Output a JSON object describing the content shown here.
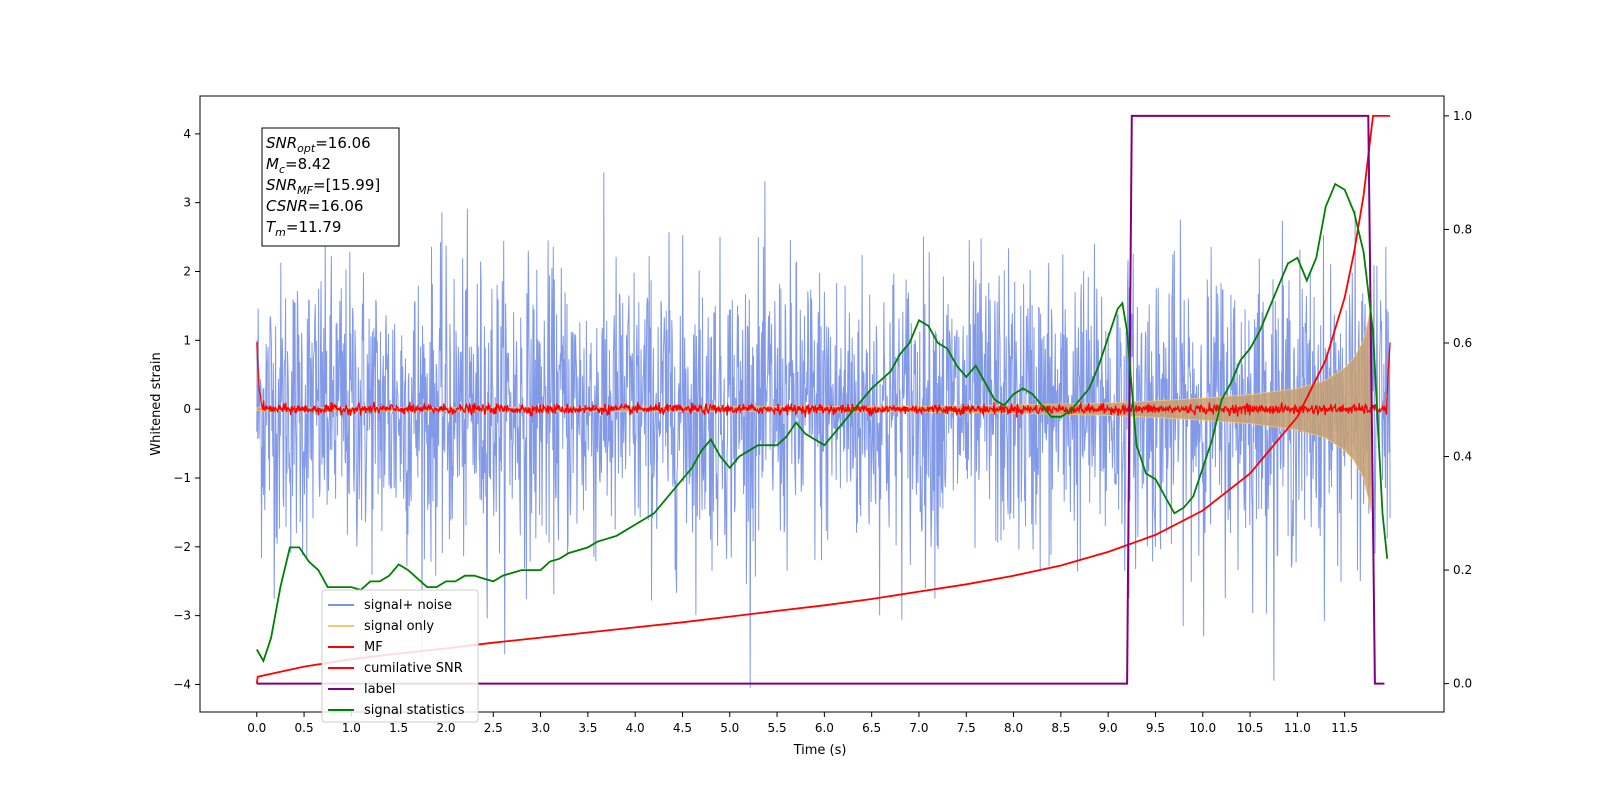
{
  "chart_data": {
    "type": "line",
    "xlabel": "Time (s)",
    "ylabel": "Whitened strain",
    "xlim": [
      -0.6,
      12.55
    ],
    "ylim": [
      -4.4,
      4.55
    ],
    "y2lim": [
      -0.05,
      1.035
    ],
    "x_ticks": [
      0.0,
      0.5,
      1.0,
      1.5,
      2.0,
      2.5,
      3.0,
      3.5,
      4.0,
      4.5,
      5.0,
      5.5,
      6.0,
      6.5,
      7.0,
      7.5,
      8.0,
      8.5,
      9.0,
      9.5,
      10.0,
      10.5,
      11.0,
      11.5
    ],
    "x_tick_labels": [
      "0.0",
      "0.5",
      "1.0",
      "1.5",
      "2.0",
      "2.5",
      "3.0",
      "3.5",
      "4.0",
      "4.5",
      "5.0",
      "5.5",
      "6.0",
      "6.5",
      "7.0",
      "7.5",
      "8.0",
      "8.5",
      "9.0",
      "9.5",
      "10.0",
      "10.5",
      "11.0",
      "11.5"
    ],
    "y_ticks": [
      -4,
      -3,
      -2,
      -1,
      0,
      1,
      2,
      3,
      4
    ],
    "y_tick_labels": [
      "−4",
      "−3",
      "−2",
      "−1",
      "0",
      "1",
      "2",
      "3",
      "4"
    ],
    "y2_ticks": [
      0.0,
      0.2,
      0.4,
      0.6,
      0.8,
      1.0
    ],
    "y2_tick_labels": [
      "0.0",
      "0.2",
      "0.4",
      "0.6",
      "0.8",
      "1.0"
    ],
    "grid": false,
    "legend_position": "lower-left",
    "legend": [
      {
        "label": "signal+ noise",
        "color": "#7b93e6"
      },
      {
        "label": "signal only",
        "color": "#f5c878"
      },
      {
        "label": "MF",
        "color": "#ff0000"
      },
      {
        "label": "cumilative SNR",
        "color": "#ff0000"
      },
      {
        "label": "label",
        "color": "#800080"
      },
      {
        "label": "signal statistics",
        "color": "#008000"
      }
    ],
    "annotation_lines": [
      {
        "prefix": "SNR",
        "sub": "opt",
        "value": "=16.06"
      },
      {
        "prefix": "M",
        "sub": "c",
        "value": "=8.42"
      },
      {
        "prefix": "SNR",
        "sub": "MF",
        "value": "=[15.99]"
      },
      {
        "prefix": "CSNR",
        "sub": "",
        "value": "=16.06"
      },
      {
        "prefix": "T",
        "sub": "m",
        "value": "=11.79"
      }
    ],
    "series": [
      {
        "name": "signal+ noise",
        "axis": "left",
        "color": "#7b93e6",
        "description_values": {
          "x_range": [
            0.0,
            11.98
          ],
          "envelope_typical": [
            -2.5,
            2.5
          ],
          "max_peak": 4.18,
          "min_peak": -4.0
        }
      },
      {
        "name": "signal only",
        "axis": "left",
        "color": "#c8a070",
        "x": [
          0.0,
          7.0,
          8.0,
          9.0,
          9.5,
          10.0,
          10.5,
          11.0,
          11.3,
          11.5,
          11.6,
          11.7,
          11.75,
          11.78
        ],
        "amplitude": [
          0.02,
          0.04,
          0.06,
          0.09,
          0.12,
          0.16,
          0.21,
          0.3,
          0.42,
          0.6,
          0.75,
          1.0,
          1.3,
          1.5
        ]
      },
      {
        "name": "MF",
        "axis": "left",
        "color": "#ff0000",
        "x": [
          0.0,
          0.02,
          0.05,
          0.1,
          11.94,
          11.96,
          11.98
        ],
        "y": [
          1.0,
          0.4,
          0.05,
          0.0,
          0.0,
          0.5,
          0.95
        ],
        "noise_amplitude": 0.06
      },
      {
        "name": "cumilative SNR",
        "axis": "right",
        "color": "#ff0000",
        "x": [
          0.0,
          0.01,
          0.5,
          1.0,
          1.5,
          2.0,
          2.5,
          3.0,
          3.5,
          4.0,
          4.5,
          5.0,
          5.5,
          6.0,
          6.5,
          7.0,
          7.5,
          8.0,
          8.5,
          9.0,
          9.5,
          10.0,
          10.5,
          11.0,
          11.3,
          11.5,
          11.6,
          11.7,
          11.75,
          11.8,
          11.98
        ],
        "y": [
          0.0,
          0.012,
          0.03,
          0.043,
          0.053,
          0.062,
          0.072,
          0.081,
          0.09,
          0.099,
          0.108,
          0.118,
          0.128,
          0.138,
          0.149,
          0.162,
          0.175,
          0.19,
          0.208,
          0.232,
          0.262,
          0.305,
          0.37,
          0.47,
          0.57,
          0.68,
          0.76,
          0.86,
          0.93,
          1.0,
          1.0
        ]
      },
      {
        "name": "label",
        "axis": "right",
        "color": "#800080",
        "x": [
          0.0,
          9.2,
          9.25,
          11.75,
          11.82,
          11.92
        ],
        "y": [
          0.0,
          0.0,
          1.0,
          1.0,
          0.0,
          0.0
        ]
      },
      {
        "name": "signal statistics",
        "axis": "right",
        "color": "#008000",
        "x": [
          0.0,
          0.07,
          0.15,
          0.25,
          0.35,
          0.45,
          0.55,
          0.65,
          0.75,
          0.85,
          1.0,
          1.1,
          1.2,
          1.3,
          1.4,
          1.5,
          1.6,
          1.7,
          1.8,
          1.9,
          2.0,
          2.1,
          2.2,
          2.3,
          2.4,
          2.5,
          2.6,
          2.7,
          2.8,
          2.9,
          3.0,
          3.1,
          3.2,
          3.3,
          3.4,
          3.5,
          3.6,
          3.7,
          3.8,
          3.9,
          4.0,
          4.1,
          4.2,
          4.3,
          4.4,
          4.5,
          4.6,
          4.7,
          4.8,
          4.9,
          5.0,
          5.1,
          5.2,
          5.3,
          5.4,
          5.5,
          5.6,
          5.7,
          5.8,
          5.9,
          6.0,
          6.1,
          6.2,
          6.3,
          6.4,
          6.5,
          6.6,
          6.7,
          6.8,
          6.9,
          7.0,
          7.1,
          7.2,
          7.3,
          7.4,
          7.5,
          7.6,
          7.7,
          7.8,
          7.9,
          8.0,
          8.1,
          8.2,
          8.3,
          8.4,
          8.5,
          8.6,
          8.7,
          8.8,
          8.9,
          9.0,
          9.1,
          9.15,
          9.2,
          9.3,
          9.4,
          9.5,
          9.6,
          9.7,
          9.8,
          9.9,
          10.0,
          10.1,
          10.2,
          10.3,
          10.4,
          10.5,
          10.6,
          10.7,
          10.8,
          10.9,
          11.0,
          11.1,
          11.2,
          11.3,
          11.4,
          11.5,
          11.6,
          11.7,
          11.8,
          11.9,
          11.95
        ],
        "y": [
          0.06,
          0.04,
          0.08,
          0.17,
          0.24,
          0.24,
          0.215,
          0.2,
          0.17,
          0.17,
          0.17,
          0.165,
          0.18,
          0.18,
          0.19,
          0.21,
          0.2,
          0.185,
          0.17,
          0.17,
          0.18,
          0.18,
          0.19,
          0.19,
          0.185,
          0.18,
          0.19,
          0.195,
          0.2,
          0.2,
          0.2,
          0.215,
          0.22,
          0.23,
          0.235,
          0.24,
          0.25,
          0.255,
          0.26,
          0.27,
          0.28,
          0.29,
          0.3,
          0.32,
          0.34,
          0.36,
          0.38,
          0.41,
          0.43,
          0.4,
          0.38,
          0.4,
          0.41,
          0.42,
          0.42,
          0.42,
          0.435,
          0.46,
          0.44,
          0.43,
          0.42,
          0.44,
          0.46,
          0.48,
          0.5,
          0.52,
          0.535,
          0.55,
          0.58,
          0.6,
          0.64,
          0.63,
          0.6,
          0.59,
          0.56,
          0.54,
          0.56,
          0.53,
          0.5,
          0.49,
          0.51,
          0.52,
          0.51,
          0.49,
          0.47,
          0.47,
          0.48,
          0.5,
          0.52,
          0.56,
          0.61,
          0.66,
          0.67,
          0.62,
          0.42,
          0.37,
          0.36,
          0.33,
          0.3,
          0.31,
          0.33,
          0.38,
          0.43,
          0.5,
          0.53,
          0.57,
          0.59,
          0.62,
          0.66,
          0.7,
          0.74,
          0.75,
          0.71,
          0.75,
          0.84,
          0.88,
          0.87,
          0.83,
          0.76,
          0.62,
          0.3,
          0.22
        ]
      }
    ]
  }
}
